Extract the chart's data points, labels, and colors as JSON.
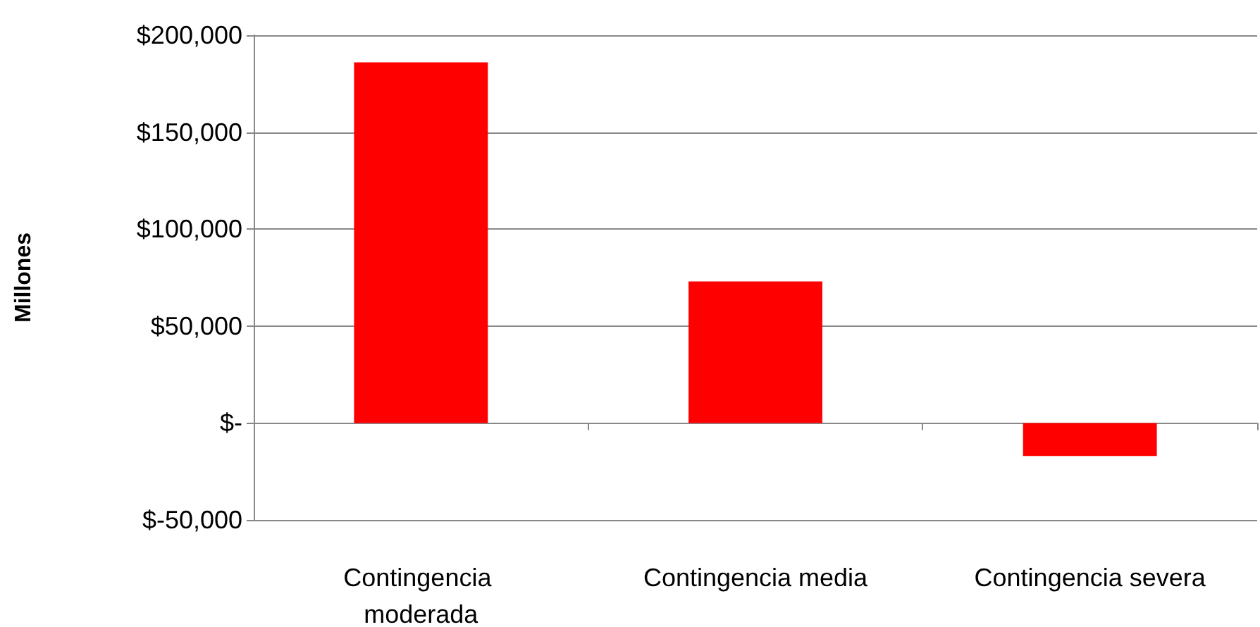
{
  "chart_data": {
    "type": "bar",
    "ylabel": "Millones",
    "categories": [
      "Contingencia moderada",
      "Contingencia media",
      "Contingencia severa"
    ],
    "series": [
      {
        "color": "#ff0000",
        "values": [
          186000,
          73000,
          -17000
        ]
      }
    ],
    "ylim": [
      -50000,
      200000
    ],
    "yticks": [
      {
        "value": -50000,
        "label": "$-50,000"
      },
      {
        "value": 0,
        "label": "$-"
      },
      {
        "value": 50000,
        "label": "$50,000"
      },
      {
        "value": 100000,
        "label": "$100,000"
      },
      {
        "value": 150000,
        "label": "$150,000"
      },
      {
        "value": 200000,
        "label": "$200,000"
      }
    ],
    "grid": "y"
  }
}
